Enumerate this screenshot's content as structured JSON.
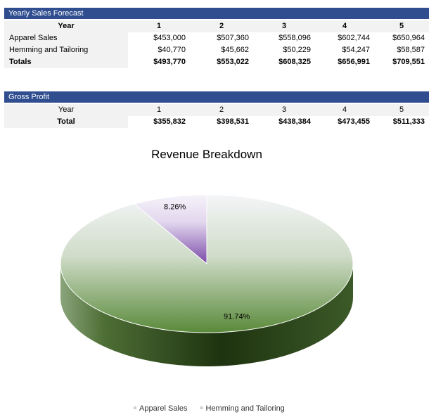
{
  "sales_table": {
    "title": "Yearly Sales Forecast",
    "header": [
      "Year",
      "1",
      "2",
      "3",
      "4",
      "5"
    ],
    "rows": [
      [
        "Apparel Sales",
        "$453,000",
        "$507,360",
        "$558,096",
        "$602,744",
        "$650,964"
      ],
      [
        "Hemming and Tailoring",
        "$40,770",
        "$45,662",
        "$50,229",
        "$54,247",
        "$58,587"
      ],
      [
        "Totals",
        "$493,770",
        "$553,022",
        "$608,325",
        "$656,991",
        "$709,551"
      ]
    ]
  },
  "profit_table": {
    "title": "Gross Profit",
    "header": [
      "Year",
      "1",
      "2",
      "3",
      "4",
      "5"
    ],
    "rows": [
      [
        "Total",
        "$355,832",
        "$398,531",
        "$438,384",
        "$473,455",
        "$511,333"
      ]
    ]
  },
  "chart_data": {
    "type": "pie",
    "title": "Revenue Breakdown",
    "categories": [
      "Apparel Sales",
      "Hemming and Tailoring"
    ],
    "values": [
      91.74,
      8.26
    ],
    "value_labels": [
      "91.74%",
      "8.26%"
    ],
    "colors": [
      "#5a8a3a",
      "#7a4aa8"
    ],
    "legend": "bottom"
  }
}
